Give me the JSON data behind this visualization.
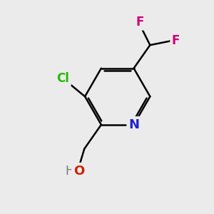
{
  "background_color": "#ebebeb",
  "ring_color": "#000000",
  "bond_width": 1.8,
  "atom_labels": {
    "N": {
      "text": "N",
      "color": "#2222cc",
      "fontsize": 13,
      "fontweight": "bold"
    },
    "Cl": {
      "text": "Cl",
      "color": "#22bb00",
      "fontsize": 12,
      "fontweight": "bold"
    },
    "O": {
      "text": "O",
      "color": "#cc2200",
      "fontsize": 13,
      "fontweight": "bold"
    },
    "H": {
      "text": "H",
      "color": "#777777",
      "fontsize": 12,
      "fontweight": "normal"
    },
    "F1": {
      "text": "F",
      "color": "#cc0077",
      "fontsize": 12,
      "fontweight": "bold"
    },
    "F2": {
      "text": "F",
      "color": "#cc0077",
      "fontsize": 12,
      "fontweight": "bold"
    }
  },
  "figsize": [
    3.0,
    3.0
  ],
  "dpi": 100
}
